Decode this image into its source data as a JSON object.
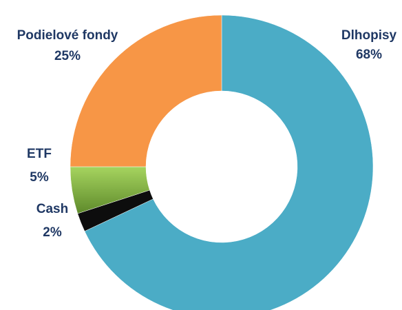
{
  "chart_data": {
    "type": "pie",
    "variant": "donut",
    "title": "",
    "legend": "none",
    "slices": [
      {
        "name": "Dlhopisy",
        "value": 68,
        "label": "68%",
        "color": "#4bacc6"
      },
      {
        "name": "Cash",
        "value": 2,
        "label": "2%",
        "color": "#0d0d0d"
      },
      {
        "name": "ETF",
        "value": 5,
        "label": "5%",
        "color": "#8cbd4e"
      },
      {
        "name": "Podielové fondy",
        "value": 25,
        "label": "25%",
        "color": "#f79646"
      }
    ]
  }
}
